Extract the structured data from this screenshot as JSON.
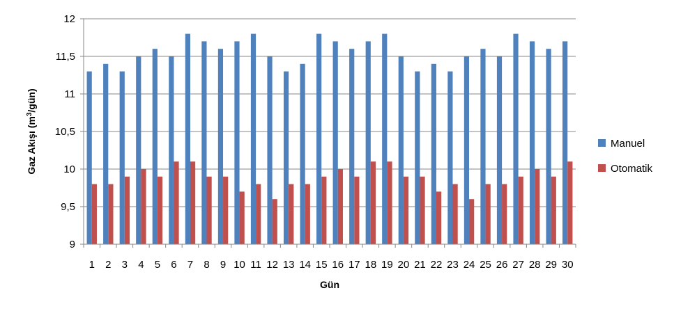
{
  "chart_data": {
    "type": "bar",
    "categories": [
      "1",
      "2",
      "3",
      "4",
      "5",
      "6",
      "7",
      "8",
      "9",
      "10",
      "11",
      "12",
      "13",
      "14",
      "15",
      "16",
      "17",
      "18",
      "19",
      "20",
      "21",
      "22",
      "23",
      "24",
      "25",
      "26",
      "27",
      "28",
      "29",
      "30"
    ],
    "series": [
      {
        "name": "Manuel",
        "color": "#4F81BD",
        "values": [
          11.3,
          11.4,
          11.3,
          11.5,
          11.6,
          11.5,
          11.8,
          11.7,
          11.6,
          11.7,
          11.8,
          11.5,
          11.3,
          11.4,
          11.8,
          11.7,
          11.6,
          11.7,
          11.8,
          11.5,
          11.3,
          11.4,
          11.3,
          11.5,
          11.6,
          11.5,
          11.8,
          11.7,
          11.6,
          11.7
        ]
      },
      {
        "name": "Otomatik",
        "color": "#C0504D",
        "values": [
          9.8,
          9.8,
          9.9,
          10.0,
          9.9,
          10.1,
          10.1,
          9.9,
          9.9,
          9.7,
          9.8,
          9.6,
          9.8,
          9.8,
          9.9,
          10.0,
          9.9,
          10.1,
          10.1,
          9.9,
          9.9,
          9.7,
          9.8,
          9.6,
          9.8,
          9.8,
          9.9,
          10.0,
          9.9,
          10.1
        ]
      }
    ],
    "xlabel": "Gün",
    "ylabel": {
      "main": "Gaz Akışı (m",
      "sup": "3",
      "tail": "/gün)"
    },
    "ylim": [
      9,
      12
    ],
    "yticks": [
      "9",
      "9,5",
      "10",
      "10,5",
      "11",
      "11,5",
      "12"
    ],
    "ytick_values": [
      9,
      9.5,
      10,
      10.5,
      11,
      11.5,
      12
    ],
    "grid": true,
    "legend": "right"
  }
}
